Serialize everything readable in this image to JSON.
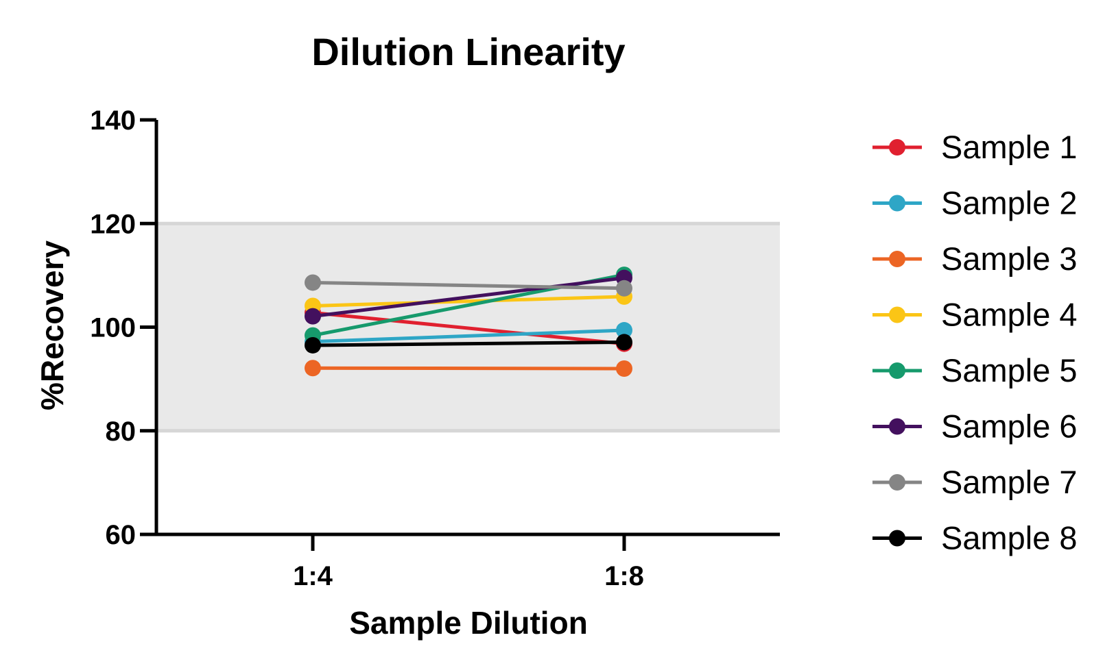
{
  "chart_data": {
    "type": "line",
    "title": "Dilution Linearity",
    "xlabel": "Sample Dilution",
    "ylabel": "%Recovery",
    "categories": [
      "1:4",
      "1:8"
    ],
    "ylim": [
      60,
      140
    ],
    "yticks": [
      60,
      80,
      100,
      120,
      140
    ],
    "acceptance_band": [
      80,
      120
    ],
    "legend_position": "right",
    "grid": false,
    "series": [
      {
        "name": "Sample 1",
        "values": [
          102.8,
          96.8
        ],
        "color": "#e0202f"
      },
      {
        "name": "Sample 2",
        "values": [
          97.2,
          99.4
        ],
        "color": "#2ea6c6"
      },
      {
        "name": "Sample 3",
        "values": [
          92.1,
          92.0
        ],
        "color": "#ec6524"
      },
      {
        "name": "Sample 4",
        "values": [
          104.1,
          105.9
        ],
        "color": "#fbc516"
      },
      {
        "name": "Sample 5",
        "values": [
          98.4,
          110.1
        ],
        "color": "#169a6c"
      },
      {
        "name": "Sample 6",
        "values": [
          102.1,
          109.5
        ],
        "color": "#43105e"
      },
      {
        "name": "Sample 7",
        "values": [
          108.6,
          107.5
        ],
        "color": "#858585"
      },
      {
        "name": "Sample 8",
        "values": [
          96.5,
          97.1
        ],
        "color": "#000000"
      }
    ]
  }
}
